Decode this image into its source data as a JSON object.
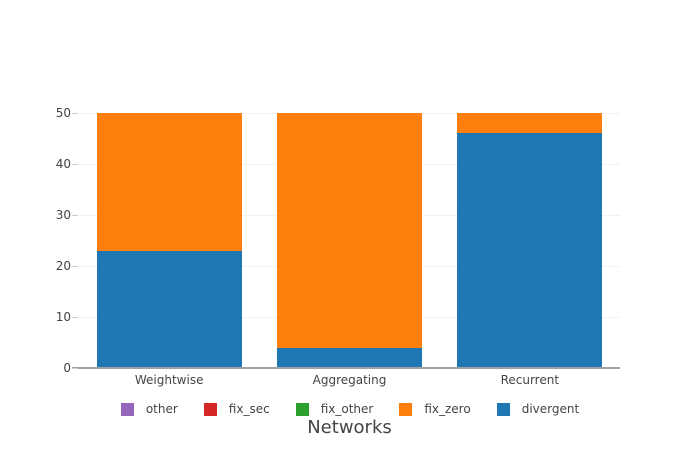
{
  "chart_data": {
    "type": "bar",
    "mode": "stacked",
    "title": "",
    "xlabel": "Networks",
    "ylabel": "",
    "categories": [
      "Weightwise",
      "Aggregating",
      "Recurrent"
    ],
    "series": [
      {
        "name": "other",
        "color": "#9467bd",
        "values": [
          0,
          0,
          0
        ]
      },
      {
        "name": "fix_sec",
        "color": "#d62728",
        "values": [
          0,
          0,
          0
        ]
      },
      {
        "name": "fix_other",
        "color": "#2ca02c",
        "values": [
          0,
          0,
          0
        ]
      },
      {
        "name": "fix_zero",
        "color": "#ff7f0e",
        "values": [
          27,
          46,
          4
        ]
      },
      {
        "name": "divergent",
        "color": "#1f77b4",
        "values": [
          23,
          4,
          46
        ]
      }
    ],
    "stack_totals": [
      50,
      50,
      50
    ],
    "ylim": [
      0,
      50
    ],
    "yticks": [
      0,
      10,
      20,
      30,
      40,
      50
    ],
    "grid": "horizontal",
    "legend_position": "bottom",
    "colors": {
      "axis_line": "#a1a1a1",
      "grid_line": "#f2f2f2",
      "tick_text": "#444444"
    }
  }
}
